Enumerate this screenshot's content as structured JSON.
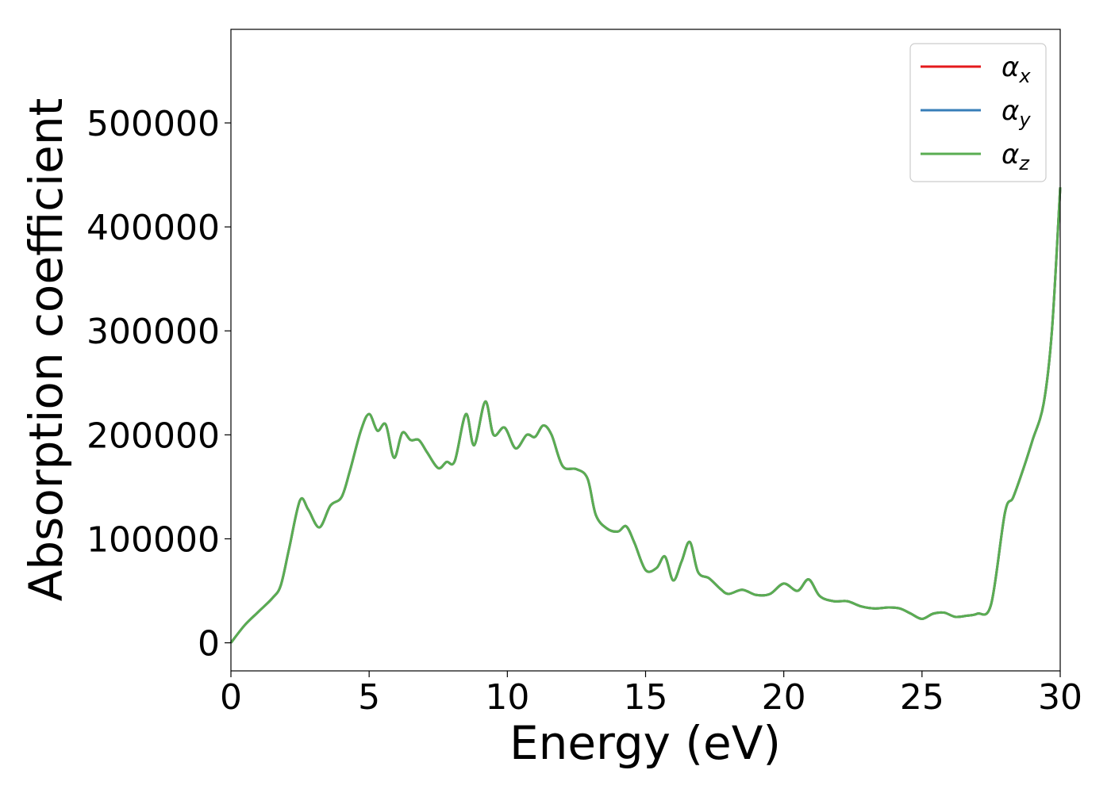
{
  "chart_data": {
    "type": "line",
    "xlabel": "Energy (eV)",
    "ylabel": "Absorption coefficient",
    "xlim": [
      0,
      30
    ],
    "ylim": [
      -27000,
      590000
    ],
    "xticks": [
      0,
      5,
      10,
      15,
      20,
      25,
      30
    ],
    "xtick_labels": [
      "0",
      "5",
      "10",
      "15",
      "20",
      "25",
      "30"
    ],
    "yticks": [
      0,
      100000,
      200000,
      300000,
      400000,
      500000
    ],
    "ytick_labels": [
      "0",
      "100000",
      "200000",
      "300000",
      "400000",
      "500000"
    ],
    "grid": false,
    "legend_position": "top-right",
    "x": [
      0,
      0.5,
      1,
      1.5,
      1.8,
      2.1,
      2.5,
      2.8,
      3.2,
      3.6,
      4.0,
      4.3,
      4.7,
      5.0,
      5.3,
      5.6,
      5.9,
      6.2,
      6.5,
      6.8,
      7.1,
      7.5,
      7.8,
      8.1,
      8.5,
      8.8,
      9.2,
      9.5,
      9.9,
      10.3,
      10.7,
      11.0,
      11.3,
      11.6,
      12.0,
      12.5,
      12.9,
      13.2,
      13.6,
      14.0,
      14.3,
      14.6,
      15.0,
      15.4,
      15.7,
      16.0,
      16.3,
      16.6,
      16.9,
      17.3,
      17.7,
      18.0,
      18.5,
      19.0,
      19.5,
      20.0,
      20.5,
      20.9,
      21.3,
      21.8,
      22.3,
      22.8,
      23.3,
      23.8,
      24.2,
      24.6,
      25.0,
      25.4,
      25.8,
      26.2,
      26.6,
      27.0,
      27.5,
      28.0,
      28.3,
      28.7,
      29.0,
      29.4,
      29.7,
      30.0
    ],
    "series": [
      {
        "name": "α_x",
        "color": "#e41a1c",
        "values": [
          0,
          17000,
          30000,
          43000,
          55000,
          90000,
          137000,
          128000,
          111000,
          132000,
          140000,
          165000,
          204000,
          220000,
          204000,
          210000,
          178000,
          202000,
          195000,
          195000,
          183000,
          168000,
          174000,
          175000,
          220000,
          190000,
          232000,
          200000,
          207000,
          187000,
          200000,
          198000,
          209000,
          200000,
          170000,
          167000,
          158000,
          123000,
          110000,
          107000,
          112000,
          96000,
          70000,
          72000,
          83000,
          60000,
          78000,
          97000,
          68000,
          62000,
          52000,
          47000,
          51000,
          46000,
          47000,
          57000,
          50000,
          61000,
          45000,
          40000,
          40000,
          35000,
          33000,
          34000,
          33000,
          28000,
          23000,
          28000,
          29000,
          25000,
          26000,
          28000,
          37000,
          125000,
          140000,
          170000,
          195000,
          230000,
          300000,
          438000
        ]
      },
      {
        "name": "α_y",
        "color": "#377eb8",
        "values": [
          0,
          17000,
          30000,
          43000,
          55000,
          90000,
          137000,
          128000,
          111000,
          132000,
          140000,
          165000,
          204000,
          220000,
          204000,
          210000,
          178000,
          202000,
          195000,
          195000,
          183000,
          168000,
          174000,
          175000,
          220000,
          190000,
          232000,
          200000,
          207000,
          187000,
          200000,
          198000,
          209000,
          200000,
          170000,
          167000,
          158000,
          123000,
          110000,
          107000,
          112000,
          96000,
          70000,
          72000,
          83000,
          60000,
          78000,
          97000,
          68000,
          62000,
          52000,
          47000,
          51000,
          46000,
          47000,
          57000,
          50000,
          61000,
          45000,
          40000,
          40000,
          35000,
          33000,
          34000,
          33000,
          28000,
          23000,
          28000,
          29000,
          25000,
          26000,
          28000,
          37000,
          125000,
          140000,
          170000,
          195000,
          230000,
          300000,
          438000
        ]
      },
      {
        "name": "α_z",
        "color": "#5aad52",
        "values": [
          0,
          17000,
          30000,
          43000,
          55000,
          90000,
          137000,
          128000,
          111000,
          132000,
          140000,
          165000,
          204000,
          220000,
          204000,
          210000,
          178000,
          202000,
          195000,
          195000,
          183000,
          168000,
          174000,
          175000,
          220000,
          190000,
          232000,
          200000,
          207000,
          187000,
          200000,
          198000,
          209000,
          200000,
          170000,
          167000,
          158000,
          123000,
          110000,
          107000,
          112000,
          96000,
          70000,
          72000,
          83000,
          60000,
          78000,
          97000,
          68000,
          62000,
          52000,
          47000,
          51000,
          46000,
          47000,
          57000,
          50000,
          61000,
          45000,
          40000,
          40000,
          35000,
          33000,
          34000,
          33000,
          28000,
          23000,
          28000,
          29000,
          25000,
          26000,
          28000,
          37000,
          125000,
          140000,
          170000,
          195000,
          230000,
          300000,
          438000
        ]
      }
    ],
    "legend": [
      {
        "symbol": "α",
        "sub": "x",
        "color": "#e41a1c"
      },
      {
        "symbol": "α",
        "sub": "y",
        "color": "#377eb8"
      },
      {
        "symbol": "α",
        "sub": "z",
        "color": "#5aad52"
      }
    ]
  }
}
